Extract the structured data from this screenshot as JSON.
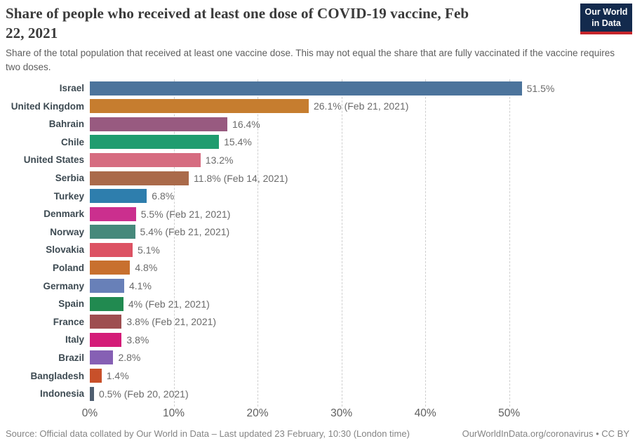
{
  "header": {
    "title_line1": "Share of people who received at least one dose of COVID-19 vaccine, Feb",
    "title_line2": "22, 2021",
    "subtitle": "Share of the total population that received at least one vaccine dose. This may not equal the share that are fully vaccinated if the vaccine requires two doses.",
    "logo": {
      "line1": "Our World",
      "line2": "in Data",
      "bg_color": "#132a4d",
      "accent_color": "#c5252b"
    }
  },
  "chart_data": {
    "type": "bar",
    "orientation": "horizontal",
    "title": "Share of people who received at least one dose of COVID-19 vaccine, Feb 22, 2021",
    "xlabel": "",
    "ylabel": "",
    "xlim": [
      0,
      65
    ],
    "grid": true,
    "tick_values": [
      0,
      10,
      20,
      30,
      40,
      50
    ],
    "tick_labels": [
      "0%",
      "10%",
      "20%",
      "30%",
      "40%",
      "50%"
    ],
    "series": [
      {
        "category": "Israel",
        "value": 51.5,
        "label": "51.5%",
        "color": "#4c749c"
      },
      {
        "category": "United Kingdom",
        "value": 26.1,
        "label": "26.1% (Feb 21, 2021)",
        "color": "#c67d2f"
      },
      {
        "category": "Bahrain",
        "value": 16.4,
        "label": "16.4%",
        "color": "#985a80"
      },
      {
        "category": "Chile",
        "value": 15.4,
        "label": "15.4%",
        "color": "#209c6f"
      },
      {
        "category": "United States",
        "value": 13.2,
        "label": "13.2%",
        "color": "#d66c80"
      },
      {
        "category": "Serbia",
        "value": 11.8,
        "label": "11.8% (Feb 14, 2021)",
        "color": "#aa6a4a"
      },
      {
        "category": "Turkey",
        "value": 6.8,
        "label": "6.8%",
        "color": "#2e7ead"
      },
      {
        "category": "Denmark",
        "value": 5.5,
        "label": "5.5% (Feb 21, 2021)",
        "color": "#cb2f8e"
      },
      {
        "category": "Norway",
        "value": 5.4,
        "label": "5.4% (Feb 21, 2021)",
        "color": "#46897b"
      },
      {
        "category": "Slovakia",
        "value": 5.1,
        "label": "5.1%",
        "color": "#dc5263"
      },
      {
        "category": "Poland",
        "value": 4.8,
        "label": "4.8%",
        "color": "#c8702e"
      },
      {
        "category": "Germany",
        "value": 4.1,
        "label": "4.1%",
        "color": "#6880b8"
      },
      {
        "category": "Spain",
        "value": 4.0,
        "label": "4% (Feb 21, 2021)",
        "color": "#218a50"
      },
      {
        "category": "France",
        "value": 3.8,
        "label": "3.8% (Feb 21, 2021)",
        "color": "#9e4e50"
      },
      {
        "category": "Italy",
        "value": 3.8,
        "label": "3.8%",
        "color": "#d41c78"
      },
      {
        "category": "Brazil",
        "value": 2.8,
        "label": "2.8%",
        "color": "#8660b4"
      },
      {
        "category": "Bangladesh",
        "value": 1.4,
        "label": "1.4%",
        "color": "#c8502a"
      },
      {
        "category": "Indonesia",
        "value": 0.5,
        "label": "0.5% (Feb 20, 2021)",
        "color": "#4f5e70"
      }
    ]
  },
  "footer": {
    "source": "Source: Official data collated by Our World in Data – Last updated 23 February, 10:30 (London time)",
    "link": "OurWorldInData.org/coronavirus • CC BY"
  }
}
